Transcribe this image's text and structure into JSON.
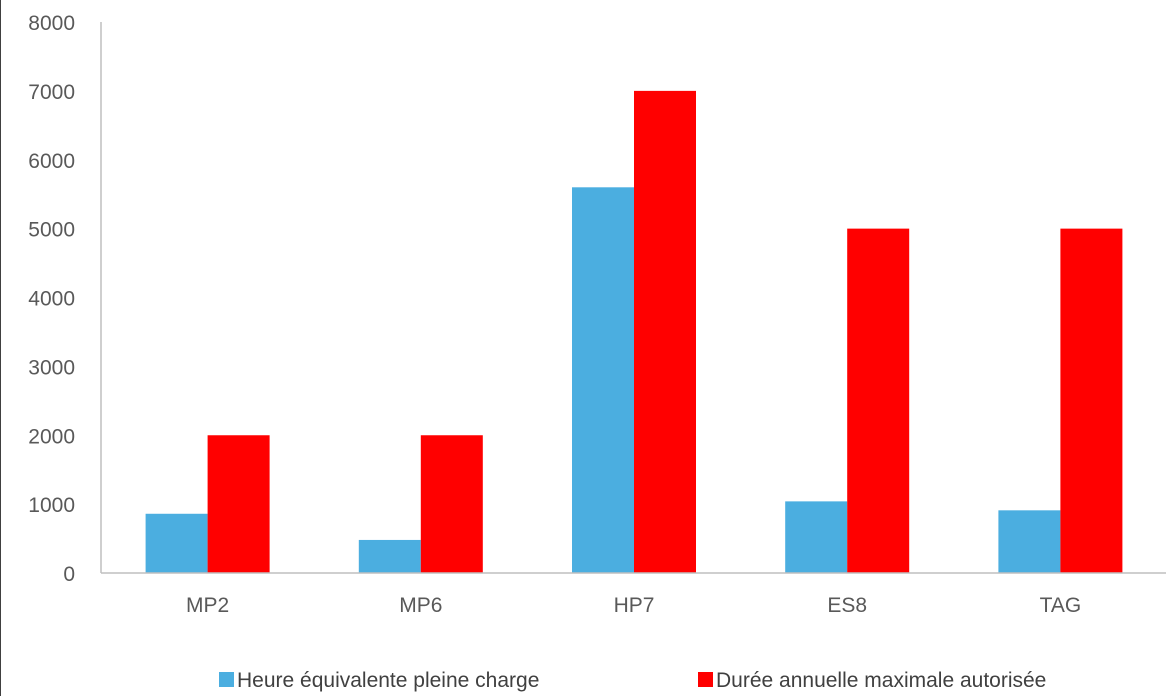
{
  "chart_data": {
    "type": "bar",
    "title": "",
    "xlabel": "",
    "ylabel": "",
    "categories": [
      "MP2",
      "MP6",
      "HP7",
      "ES8",
      "TAG"
    ],
    "series": [
      {
        "name": "Heure équivalente pleine charge",
        "color": "#4baee0",
        "values": [
          860,
          480,
          5600,
          1040,
          910
        ]
      },
      {
        "name": "Durée annuelle maximale autorisée",
        "color": "#ff0000",
        "values": [
          2000,
          2000,
          7000,
          5000,
          5000
        ]
      }
    ],
    "ylim": [
      0,
      8000
    ],
    "yticks": [
      "0",
      "1000",
      "2000",
      "3000",
      "4000",
      "5000",
      "6000",
      "7000",
      "8000"
    ],
    "grid": false,
    "legend": "bottom"
  }
}
